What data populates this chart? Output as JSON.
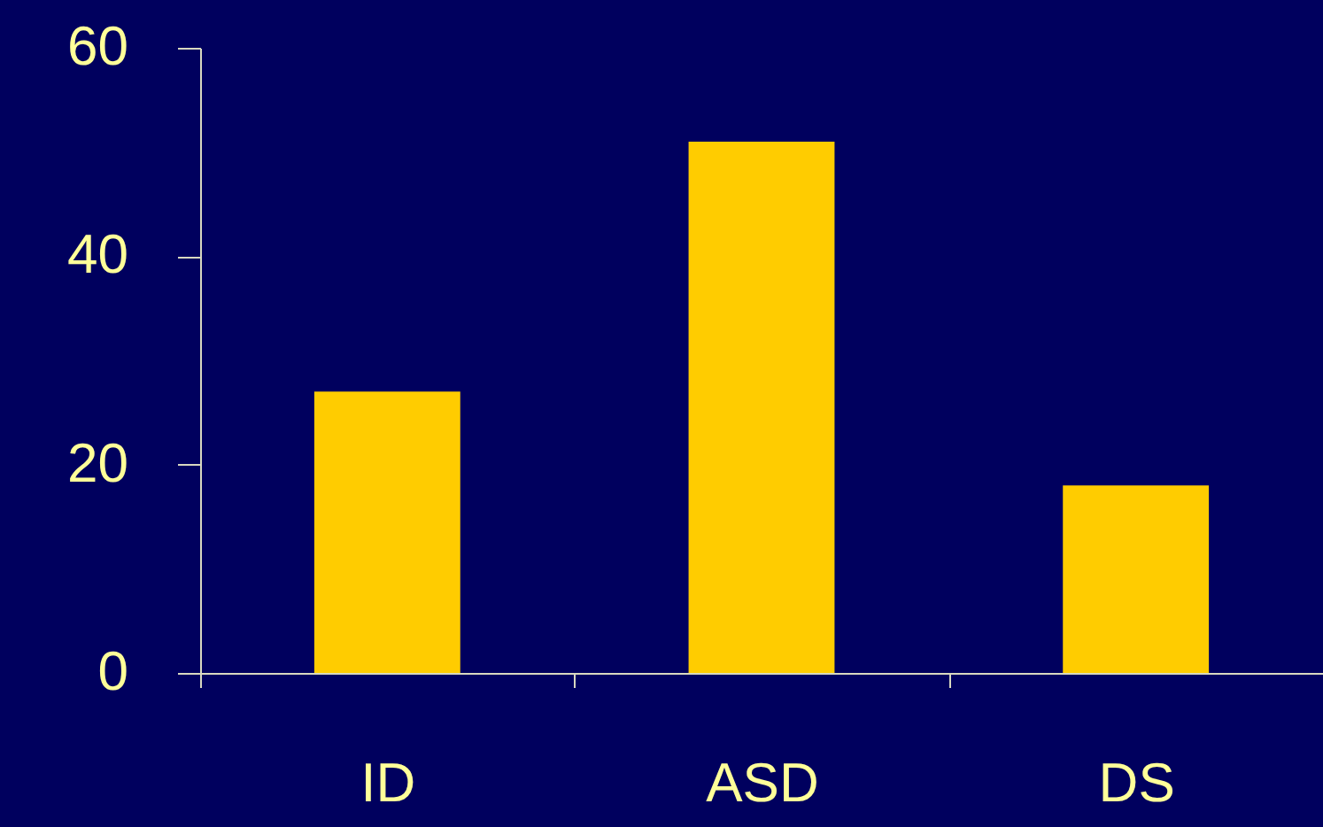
{
  "chart_data": {
    "type": "bar",
    "categories": [
      "ID",
      "ASD",
      "DS"
    ],
    "values": [
      27,
      51,
      18
    ],
    "color": "#ffcc00",
    "ylim": [
      0,
      60
    ],
    "yticks": [
      0,
      20,
      40,
      60
    ],
    "grid": false
  }
}
